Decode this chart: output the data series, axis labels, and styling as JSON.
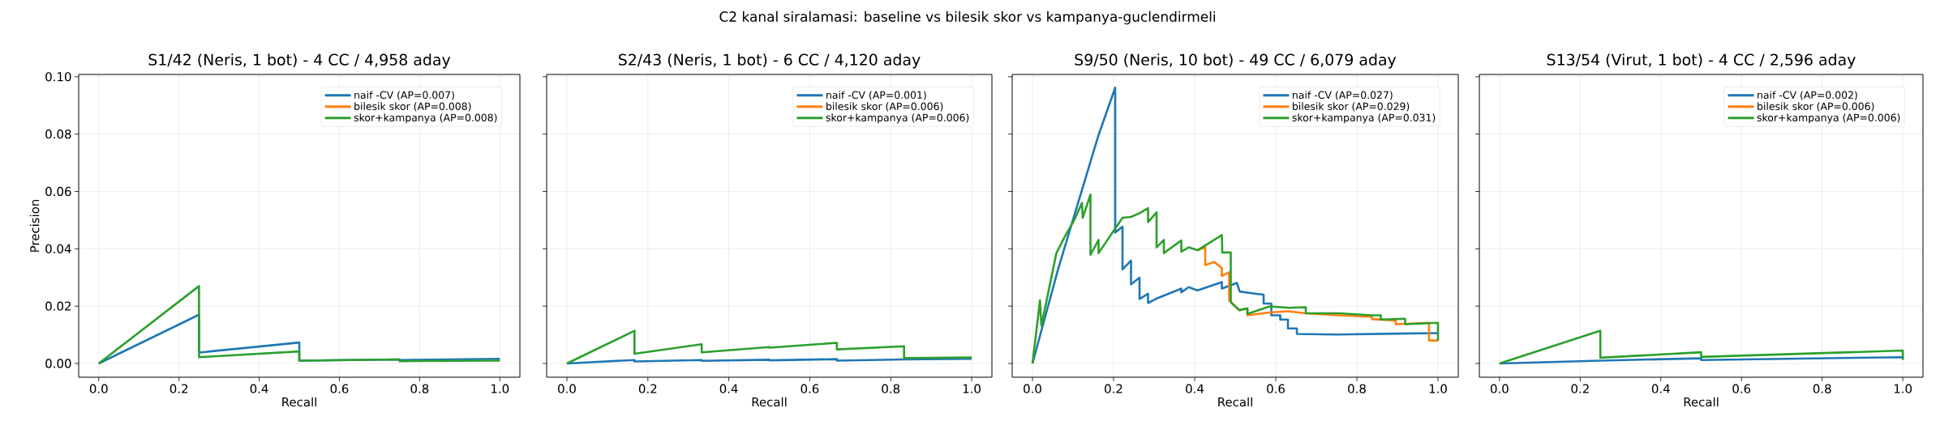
{
  "chart_data": [
    {
      "type": "line",
      "title": "S1/42 (Neris, 1 bot) - 4 CC / 4,958 aday",
      "annotations": [
        "C2 kanal siralamasi: baseline vs bilesik skor vs kampanya-guclendirmeli"
      ],
      "xlabel": "Recall",
      "ylabel": "Precision",
      "xlim": [
        -0.05,
        1.05
      ],
      "ylim": [
        -0.0048,
        0.1008
      ],
      "xticks": [
        {
          "value": 0,
          "label": "0.0"
        },
        {
          "value": 0.2,
          "label": "0.2"
        },
        {
          "value": 0.4,
          "label": "0.4"
        },
        {
          "value": 0.6,
          "label": "0.6"
        },
        {
          "value": 0.8,
          "label": "0.8"
        },
        {
          "value": 1,
          "label": "1.0"
        }
      ],
      "yticks": [
        {
          "value": 0,
          "label": "0.00"
        },
        {
          "value": 0.02,
          "label": "0.02"
        },
        {
          "value": 0.04,
          "label": "0.04"
        },
        {
          "value": 0.06,
          "label": "0.06"
        },
        {
          "value": 0.08,
          "label": "0.08"
        },
        {
          "value": 0.1,
          "label": "0.10"
        }
      ],
      "grid": true,
      "legend": "top right",
      "line_style": "solid",
      "series": [
        {
          "name": "naif -CV (AP=0.007)",
          "color": "#1f77b4",
          "x": [
            0,
            0.25,
            0.25,
            0.5,
            0.5,
            0.75,
            0.75,
            1.0
          ],
          "values": [
            0,
            0.017,
            0.0038,
            0.0073,
            0.001,
            0.0014,
            0.0012,
            0.0016
          ]
        },
        {
          "name": "bilesik skor (AP=0.008)",
          "color": "#ff7f0e"
        },
        {
          "name": "skor+kampanya (AP=0.008)",
          "color": "#2ca02c",
          "x": [
            0,
            0.25,
            0.25,
            0.5,
            0.5,
            0.75,
            0.75,
            1.0
          ],
          "values": [
            0,
            0.027,
            0.0022,
            0.0042,
            0.001,
            0.0014,
            0.0008,
            0.001
          ]
        }
      ]
    },
    {
      "type": "line",
      "title": "S2/43 (Neris, 1 bot) - 6 CC / 4,120 aday",
      "xlabel": "Recall",
      "xlim": [
        -0.05,
        1.05
      ],
      "ylim": [
        -0.0048,
        0.1008
      ],
      "xticks": [
        {
          "value": 0,
          "label": "0.0"
        },
        {
          "value": 0.2,
          "label": "0.2"
        },
        {
          "value": 0.4,
          "label": "0.4"
        },
        {
          "value": 0.6,
          "label": "0.6"
        },
        {
          "value": 0.8,
          "label": "0.8"
        },
        {
          "value": 1,
          "label": "1.0"
        }
      ],
      "yticks": [
        {
          "value": 0,
          "label": null
        },
        {
          "value": 0.02,
          "label": null
        },
        {
          "value": 0.04,
          "label": null
        },
        {
          "value": 0.06,
          "label": null
        },
        {
          "value": 0.08,
          "label": null
        },
        {
          "value": 0.1,
          "label": null
        }
      ],
      "tick_labels": "x",
      "grid": true,
      "legend": "top right",
      "line_style": "solid",
      "series": [
        {
          "name": "naif -CV (AP=0.001)",
          "color": "#1f77b4",
          "x": [
            0,
            0.167,
            0.167,
            0.333,
            0.333,
            0.5,
            0.5,
            0.667,
            0.667,
            0.833,
            0.833,
            1.0
          ],
          "values": [
            0,
            0.0012,
            0.0007,
            0.0012,
            0.0009,
            0.0013,
            0.0011,
            0.0015,
            0.001,
            0.0014,
            0.0014,
            0.0016
          ]
        },
        {
          "name": "bilesik skor (AP=0.006)",
          "color": "#ff7f0e"
        },
        {
          "name": "skor+kampanya (AP=0.006)",
          "color": "#2ca02c",
          "x": [
            0,
            0.167,
            0.167,
            0.333,
            0.333,
            0.5,
            0.5,
            0.667,
            0.667,
            0.833,
            0.833,
            1.0
          ],
          "values": [
            0,
            0.0114,
            0.0034,
            0.0067,
            0.0039,
            0.0057,
            0.0055,
            0.0072,
            0.0049,
            0.006,
            0.0019,
            0.0021
          ]
        }
      ]
    },
    {
      "type": "line",
      "title": "S9/50 (Neris, 10 bot) - 49 CC / 6,079 aday",
      "xlabel": "Recall",
      "xlim": [
        -0.05,
        1.05
      ],
      "ylim": [
        -0.0048,
        0.1008
      ],
      "xticks": [
        {
          "value": 0,
          "label": "0.0"
        },
        {
          "value": 0.2,
          "label": "0.2"
        },
        {
          "value": 0.4,
          "label": "0.4"
        },
        {
          "value": 0.6,
          "label": "0.6"
        },
        {
          "value": 0.8,
          "label": "0.8"
        },
        {
          "value": 1,
          "label": "1.0"
        }
      ],
      "yticks": [
        {
          "value": 0,
          "label": null
        },
        {
          "value": 0.02,
          "label": null
        },
        {
          "value": 0.04,
          "label": null
        },
        {
          "value": 0.06,
          "label": null
        },
        {
          "value": 0.08,
          "label": null
        },
        {
          "value": 0.1,
          "label": null
        }
      ],
      "tick_labels": "x",
      "grid": true,
      "legend": "top right",
      "line_style": "solid",
      "series": [
        {
          "name": "naif -CV (AP=0.027)",
          "color": "#1f77b4",
          "x": [
            0,
            0.063,
            0.163,
            0.204,
            0.204,
            0.222,
            0.222,
            0.243,
            0.243,
            0.264,
            0.264,
            0.285,
            0.285,
            0.304,
            0.367,
            0.367,
            0.385,
            0.407,
            0.467,
            0.467,
            0.504,
            0.511,
            0.552,
            0.57,
            0.57,
            0.589,
            0.589,
            0.611,
            0.611,
            0.63,
            0.63,
            0.652,
            0.652,
            0.75,
            0.9,
            1.0
          ],
          "values": [
            0,
            0.0328,
            0.0797,
            0.0962,
            0.0457,
            0.0477,
            0.0328,
            0.0359,
            0.0276,
            0.0299,
            0.0225,
            0.0243,
            0.0211,
            0.0225,
            0.0261,
            0.0248,
            0.0266,
            0.0255,
            0.0284,
            0.0261,
            0.0281,
            0.0251,
            0.0243,
            0.024,
            0.0209,
            0.0209,
            0.0168,
            0.0168,
            0.0153,
            0.0153,
            0.0122,
            0.0122,
            0.0103,
            0.0101,
            0.0104,
            0.0106
          ]
        },
        {
          "name": "bilesik skor (AP=0.029)",
          "color": "#ff7f0e",
          "x": [
            0.407,
            0.426,
            0.426,
            0.448,
            0.467,
            0.467,
            0.485,
            0.485,
            0.51,
            0.53,
            0.53,
            0.585,
            0.63,
            0.674,
            0.756,
            0.837,
            0.837,
            0.896,
            0.896,
            0.978,
            0.978,
            1.0
          ],
          "values": [
            0.0395,
            0.0405,
            0.0343,
            0.0354,
            0.0333,
            0.0305,
            0.0318,
            0.022,
            0.0186,
            0.0192,
            0.0168,
            0.0178,
            0.0182,
            0.0175,
            0.0168,
            0.0163,
            0.0155,
            0.015,
            0.0137,
            0.0142,
            0.008,
            0.008
          ]
        },
        {
          "name": "skor+kampanya (AP=0.031)",
          "color": "#2ca02c",
          "x": [
            0,
            0.0185,
            0.022,
            0.059,
            0.081,
            0.104,
            0.122,
            0.124,
            0.143,
            0.143,
            0.163,
            0.163,
            0.222,
            0.243,
            0.264,
            0.285,
            0.285,
            0.306,
            0.306,
            0.324,
            0.324,
            0.367,
            0.367,
            0.385,
            0.407,
            0.467,
            0.468,
            0.489,
            0.489,
            0.51,
            0.53,
            0.53,
            0.585,
            0.633,
            0.674,
            0.674,
            0.756,
            0.837,
            0.859,
            0.859,
            0.919,
            0.919,
            1.0,
            1.0
          ],
          "values": [
            0,
            0.022,
            0.0132,
            0.0385,
            0.0446,
            0.0503,
            0.056,
            0.0508,
            0.0589,
            0.0379,
            0.0431,
            0.0385,
            0.0508,
            0.0511,
            0.0524,
            0.0542,
            0.0493,
            0.0527,
            0.0405,
            0.0431,
            0.0385,
            0.0429,
            0.039,
            0.0405,
            0.0395,
            0.0448,
            0.0387,
            0.0387,
            0.0214,
            0.0186,
            0.0192,
            0.0173,
            0.0199,
            0.0194,
            0.0196,
            0.0175,
            0.0175,
            0.0168,
            0.0168,
            0.0153,
            0.0156,
            0.0137,
            0.0142,
            0.008
          ]
        }
      ]
    },
    {
      "type": "line",
      "title": "S13/54 (Virut, 1 bot) - 4 CC / 2,596 aday",
      "xlabel": "Recall",
      "xlim": [
        -0.05,
        1.05
      ],
      "ylim": [
        -0.0048,
        0.1008
      ],
      "xticks": [
        {
          "value": 0,
          "label": "0.0"
        },
        {
          "value": 0.2,
          "label": "0.2"
        },
        {
          "value": 0.4,
          "label": "0.4"
        },
        {
          "value": 0.6,
          "label": "0.6"
        },
        {
          "value": 0.8,
          "label": "0.8"
        },
        {
          "value": 1,
          "label": "1.0"
        }
      ],
      "yticks": [
        {
          "value": 0,
          "label": null
        },
        {
          "value": 0.02,
          "label": null
        },
        {
          "value": 0.04,
          "label": null
        },
        {
          "value": 0.06,
          "label": null
        },
        {
          "value": 0.08,
          "label": null
        },
        {
          "value": 0.1,
          "label": null
        }
      ],
      "tick_labels": "x",
      "grid": true,
      "legend": "top right",
      "line_style": "solid",
      "series": [
        {
          "name": "naif -CV (AP=0.002)",
          "color": "#1f77b4",
          "x": [
            0,
            0.25,
            0.5,
            0.5,
            1.0,
            1.0
          ],
          "values": [
            0,
            0.001,
            0.0018,
            0.0012,
            0.0022,
            0.0015
          ]
        },
        {
          "name": "bilesik skor (AP=0.006)",
          "color": "#ff7f0e"
        },
        {
          "name": "skor+kampanya (AP=0.006)",
          "color": "#2ca02c",
          "x": [
            0,
            0.25,
            0.25,
            0.5,
            0.5,
            1.0,
            1.0
          ],
          "values": [
            0,
            0.0114,
            0.002,
            0.0039,
            0.0023,
            0.0045,
            0.0013
          ]
        }
      ]
    }
  ]
}
